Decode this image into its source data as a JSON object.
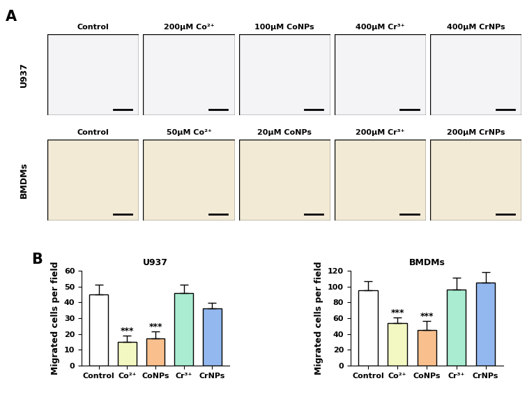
{
  "panels": {
    "A": {
      "label": "A",
      "rows": [
        {
          "name": "U937",
          "columns": [
            "Control",
            "200μM Co²⁺",
            "100μM CoNPs",
            "400μM Cr³⁺",
            "400μM CrNPs"
          ]
        },
        {
          "name": "BMDMs",
          "columns": [
            "Control",
            "50μM Co²⁺",
            "20μM CoNPs",
            "200μM Cr³⁺",
            "200μM CrNPs"
          ]
        }
      ]
    },
    "B": {
      "label": "B"
    }
  },
  "chart_data": [
    {
      "type": "bar",
      "title": "U937",
      "y_label": "Migrated cells per field",
      "categories": [
        "Control",
        "Co²⁺",
        "CoNPs",
        "Cr³⁺",
        "CrNPs"
      ],
      "values": [
        45,
        15,
        17,
        46,
        36
      ],
      "errors": [
        6,
        4,
        4.5,
        5,
        3.5
      ],
      "colors": [
        "#ffffff",
        "#f3f7c2",
        "#f9c08e",
        "#a9ecd2",
        "#93b8ef"
      ],
      "ylim": [
        0,
        60
      ],
      "yticks": [
        0,
        10,
        20,
        30,
        40,
        50,
        60
      ],
      "annotations": [
        {
          "category": "Co²⁺",
          "text": "***"
        },
        {
          "category": "CoNPs",
          "text": "***"
        }
      ]
    },
    {
      "type": "bar",
      "title": "BMDMs",
      "y_label": "Migrated cells per field",
      "categories": [
        "Control",
        "Co²⁺",
        "CoNPs",
        "Cr³⁺",
        "CrNPs"
      ],
      "values": [
        95,
        54,
        45,
        96,
        105
      ],
      "errors": [
        12,
        7,
        11,
        15,
        13
      ],
      "colors": [
        "#ffffff",
        "#f3f7c2",
        "#f9c08e",
        "#a9ecd2",
        "#93b8ef"
      ],
      "ylim": [
        0,
        120
      ],
      "yticks": [
        0,
        20,
        40,
        60,
        80,
        100,
        120
      ],
      "annotations": [
        {
          "category": "Co²⁺",
          "text": "***"
        },
        {
          "category": "CoNPs",
          "text": "***"
        }
      ]
    }
  ]
}
